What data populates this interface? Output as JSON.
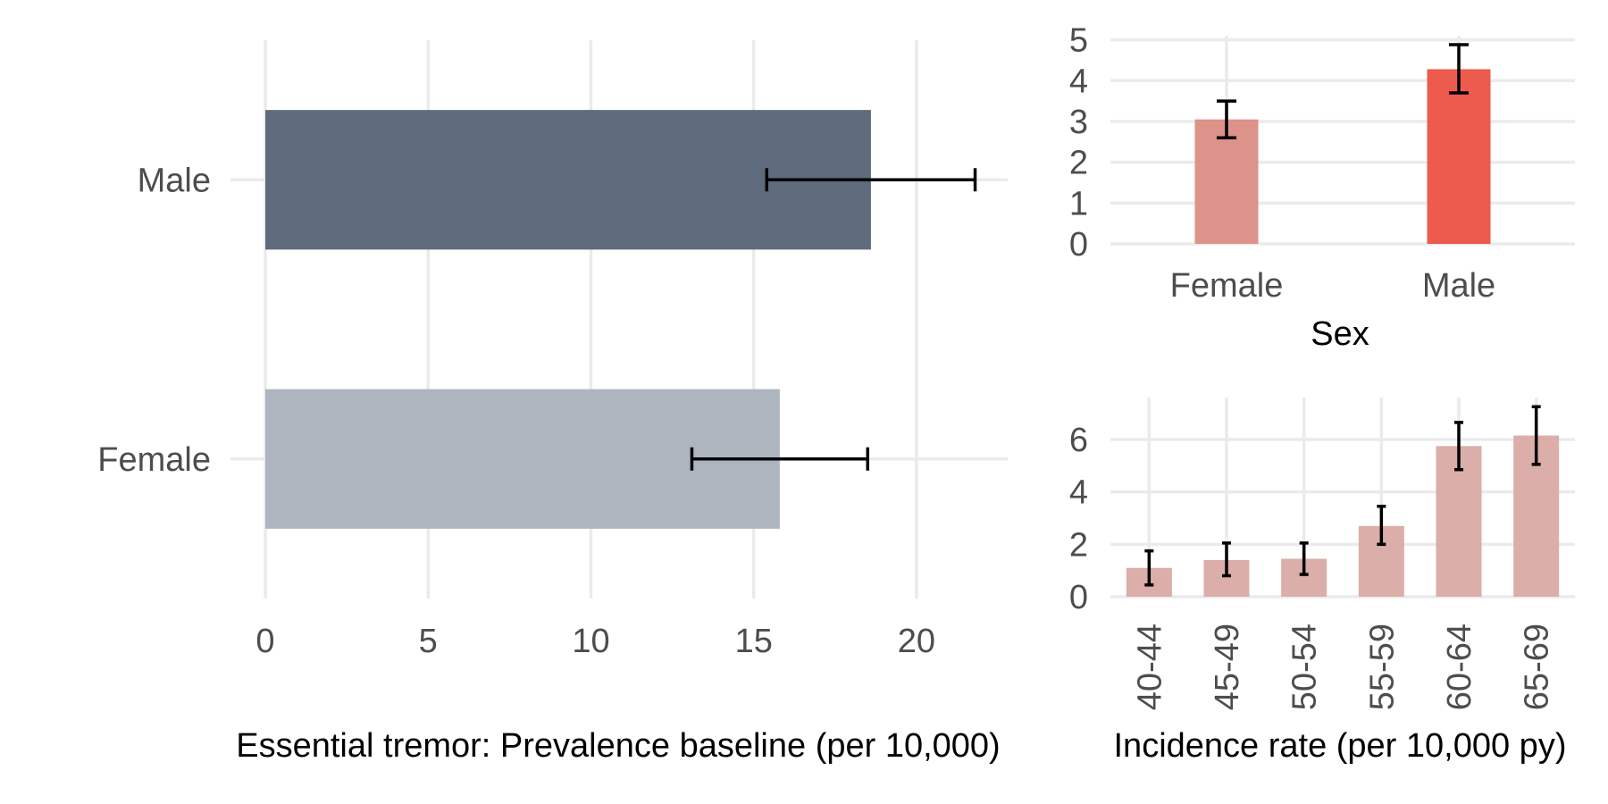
{
  "chart_data": [
    {
      "type": "bar",
      "orientation": "horizontal",
      "categories": [
        "Male",
        "Female"
      ],
      "values": [
        18.6,
        15.8
      ],
      "error_low": [
        15.4,
        13.1
      ],
      "error_high": [
        21.8,
        18.5
      ],
      "colors": [
        "#5d6b7c",
        "#adb5bf"
      ],
      "xlabel": "Essential tremor: Prevalence baseline (per 10,000)",
      "ylabel": "",
      "xlim": [
        0,
        22.8
      ],
      "xticks": [
        "0",
        "5",
        "10",
        "15",
        "20"
      ],
      "grid": true,
      "legend": "none"
    },
    {
      "type": "bar",
      "categories": [
        "Female",
        "Male"
      ],
      "values": [
        3.05,
        4.28
      ],
      "error_low": [
        2.6,
        3.7
      ],
      "error_high": [
        3.5,
        4.88
      ],
      "colors": [
        "#dd928a",
        "#ec5b4c"
      ],
      "xlabel": "Sex",
      "ylabel": "",
      "ylim": [
        0,
        5.1
      ],
      "yticks": [
        "0",
        "1",
        "2",
        "3",
        "4",
        "5"
      ],
      "grid": true,
      "legend": "none"
    },
    {
      "type": "bar",
      "categories": [
        "40-44",
        "45-49",
        "50-54",
        "55-59",
        "60-64",
        "65-69"
      ],
      "values": [
        1.1,
        1.4,
        1.45,
        2.7,
        5.75,
        6.15
      ],
      "error_low": [
        0.45,
        0.8,
        0.85,
        2.0,
        4.85,
        5.05
      ],
      "error_high": [
        1.75,
        2.05,
        2.05,
        3.45,
        6.65,
        7.25
      ],
      "colors": [
        "#dbaea9"
      ],
      "xlabel": "Incidence rate (per 10,000 py)",
      "ylabel": "",
      "ylim": [
        0,
        7.6
      ],
      "yticks": [
        "0",
        "2",
        "4",
        "6"
      ],
      "grid": true,
      "legend": "none"
    }
  ]
}
